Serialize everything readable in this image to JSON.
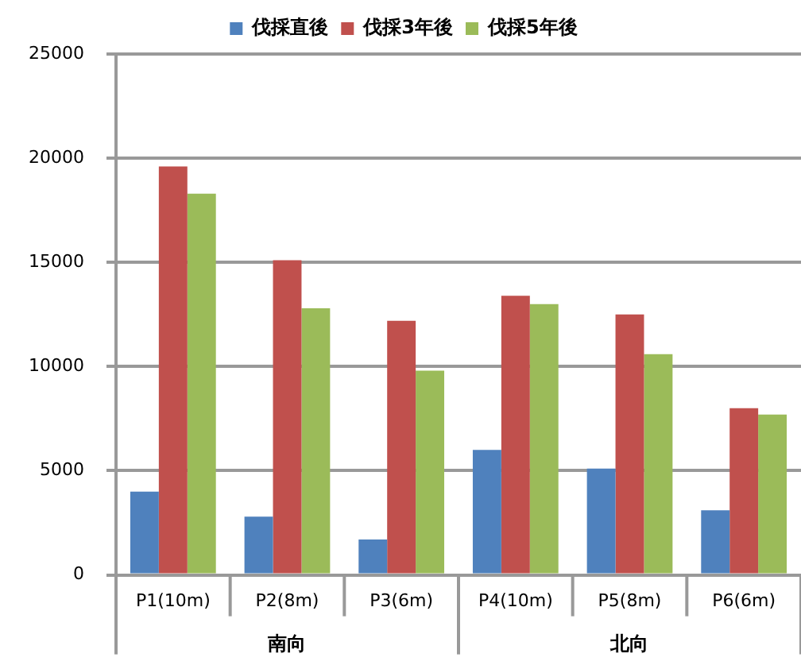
{
  "chart_data": {
    "type": "bar",
    "categories": [
      "P1(10m)",
      "P2(8m)",
      "P3(6m)",
      "P4(10m)",
      "P5(8m)",
      "P6(6m)"
    ],
    "series": [
      {
        "name": "伐採直後",
        "color": "#4f81bd",
        "values": [
          4000,
          2800,
          1700,
          6000,
          5100,
          3100
        ]
      },
      {
        "name": "伐採3年後",
        "color": "#c0504d",
        "values": [
          19600,
          15100,
          12200,
          13400,
          12500,
          8000
        ]
      },
      {
        "name": "伐採5年後",
        "color": "#9bbb59",
        "values": [
          18300,
          12800,
          9800,
          13000,
          10600,
          7700
        ]
      }
    ],
    "ylim": [
      0,
      25000
    ],
    "yticks": [
      0,
      5000,
      10000,
      15000,
      20000,
      25000
    ],
    "grid": "y",
    "legend": "top",
    "annotations": [
      "南向",
      "北向"
    ]
  }
}
